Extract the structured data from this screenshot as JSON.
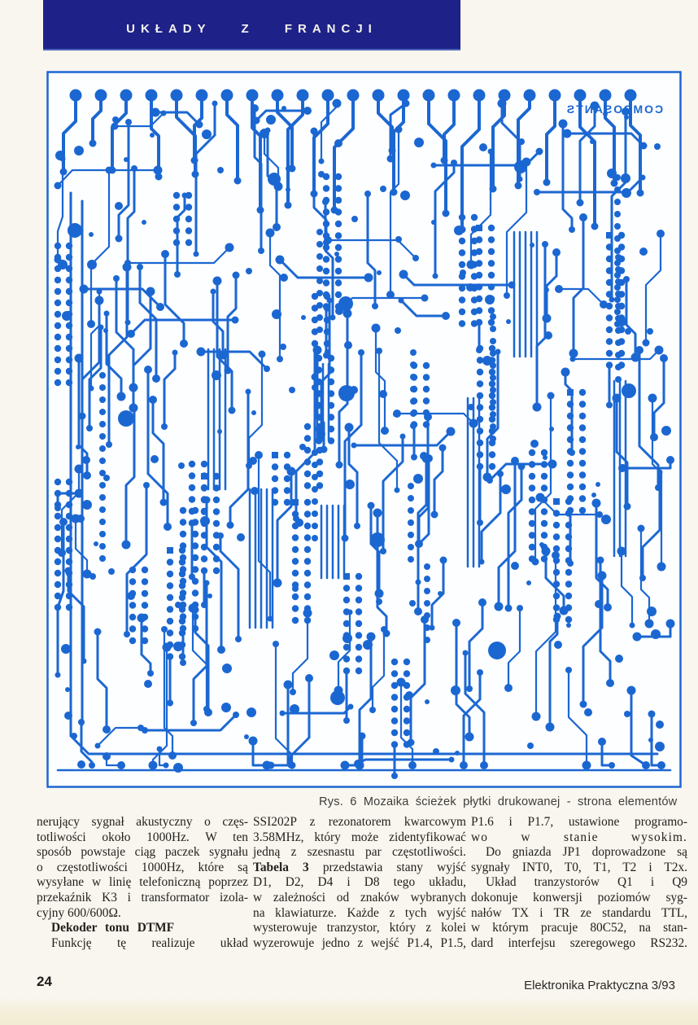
{
  "header": {
    "title": "UKŁADY Z FRANCJI"
  },
  "figure": {
    "caption": "Rys. 6 Mozaika ścieżek płytki drukowanej - strona elementów",
    "board_label": "COMPOSANTS",
    "trace_color": "#1b67d2"
  },
  "article": {
    "columns": [
      {
        "lines": [
          {
            "b": "",
            "t": "nerujący sygnał akustyczny o częs-"
          },
          {
            "b": "",
            "t": "totliwości około 1000Hz. W ten"
          },
          {
            "b": "",
            "t": "sposób powstaje ciąg paczek sygnału"
          },
          {
            "b": "",
            "t": "o częstotliwości 1000Hz, które są"
          },
          {
            "b": "",
            "t": "wysyłane w linię telefoniczną poprzez"
          },
          {
            "b": "",
            "t": "przekaźnik K3 i transformator izola-"
          },
          {
            "b": "",
            "t": "cyjny 600/600Ω."
          },
          {
            "b": "Dekoder tonu DTMF",
            "t": ""
          },
          {
            "b": "",
            "t": "Funkcję tę realizuje układ"
          }
        ]
      },
      {
        "lines": [
          {
            "b": "",
            "t": "SSI202P z rezonatorem kwarcowym"
          },
          {
            "b": "",
            "t": "3.58MHz, który może zidentyfikować"
          },
          {
            "b": "",
            "t": "jedną z szesnastu par częstotliwości."
          },
          {
            "b": "Tabela 3",
            "t": " przedstawia stany wyjść"
          },
          {
            "b": "",
            "t": "D1, D2, D4 i D8 tego układu,"
          },
          {
            "b": "",
            "t": "w zależności od znaków wybranych"
          },
          {
            "b": "",
            "t": "na klawiaturze. Każde z tych wyjść"
          },
          {
            "b": "",
            "t": "wysterowuje tranzystor, który z kolei"
          },
          {
            "b": "",
            "t": "wyzerowuje jedno z wejść P1.4, P1.5,"
          }
        ]
      },
      {
        "lines": [
          {
            "b": "",
            "t": "P1.6 i P1.7, ustawione programo-"
          },
          {
            "b": "",
            "t": "wo w stanie wysokim."
          },
          {
            "b": "",
            "t": "Do gniazda JP1 doprowadzone są"
          },
          {
            "b": "",
            "t": "sygnały INT0, T0, T1, T2 i T2x."
          },
          {
            "b": "",
            "t": "Układ tranzystorów Q1 i Q9"
          },
          {
            "b": "",
            "t": "dokonuje konwersji poziomów syg-"
          },
          {
            "b": "",
            "t": "nałów TX i TR ze standardu TTL,"
          },
          {
            "b": "",
            "t": "w którym pracuje 80C52, na stan-"
          },
          {
            "b": "",
            "t": "dard interfejsu szeregowego RS232."
          }
        ]
      }
    ]
  },
  "footer": {
    "page_number": "24",
    "journal": "Elektronika Praktyczna 3/93"
  }
}
